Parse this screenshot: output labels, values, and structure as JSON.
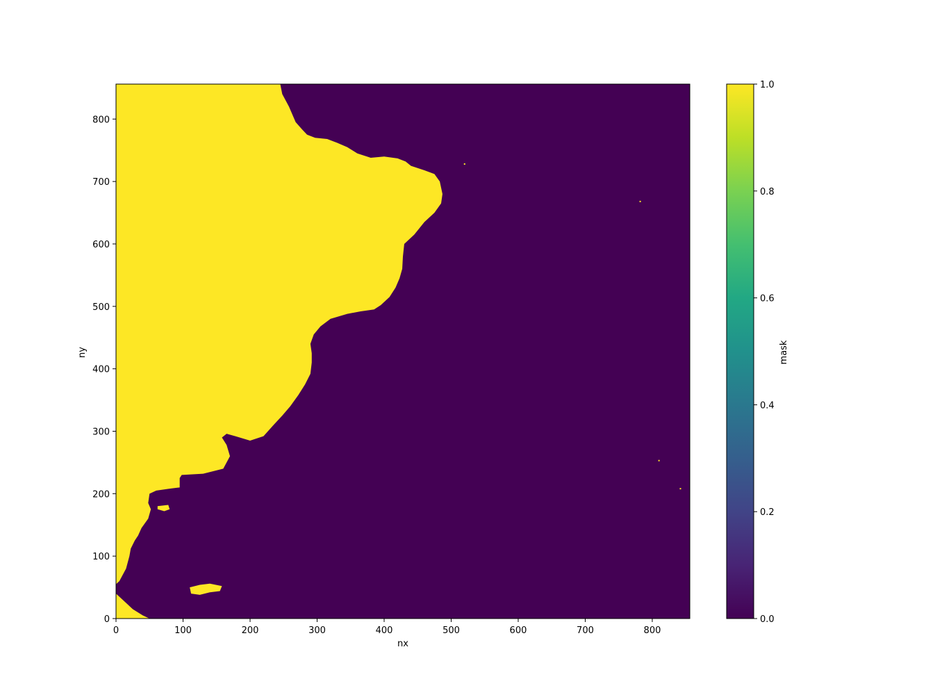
{
  "chart_data": {
    "type": "heatmap",
    "title": "",
    "xlabel": "nx",
    "ylabel": "ny",
    "xlim": [
      0,
      856
    ],
    "ylim": [
      0,
      856
    ],
    "xticks": [
      0,
      100,
      200,
      300,
      400,
      500,
      600,
      700,
      800
    ],
    "yticks": [
      0,
      100,
      200,
      300,
      400,
      500,
      600,
      700,
      800
    ],
    "colormap": "viridis",
    "colors": {
      "low": "#440154",
      "high": "#fde725"
    },
    "colorbar": {
      "label": "mask",
      "range": [
        0.0,
        1.0
      ],
      "ticks": [
        "0.0",
        "0.2",
        "0.4",
        "0.6",
        "0.8",
        "1.0"
      ]
    },
    "land_boundary": [
      [
        0,
        856
      ],
      [
        245,
        856
      ],
      [
        248,
        840
      ],
      [
        258,
        820
      ],
      [
        268,
        795
      ],
      [
        278,
        783
      ],
      [
        285,
        775
      ],
      [
        297,
        770
      ],
      [
        315,
        768
      ],
      [
        330,
        762
      ],
      [
        345,
        755
      ],
      [
        360,
        745
      ],
      [
        380,
        738
      ],
      [
        400,
        740
      ],
      [
        420,
        737
      ],
      [
        432,
        732
      ],
      [
        440,
        725
      ],
      [
        460,
        718
      ],
      [
        475,
        712
      ],
      [
        483,
        700
      ],
      [
        487,
        680
      ],
      [
        485,
        665
      ],
      [
        475,
        650
      ],
      [
        460,
        635
      ],
      [
        445,
        615
      ],
      [
        430,
        600
      ],
      [
        428,
        580
      ],
      [
        427,
        560
      ],
      [
        423,
        545
      ],
      [
        417,
        530
      ],
      [
        408,
        515
      ],
      [
        395,
        502
      ],
      [
        385,
        495
      ],
      [
        365,
        492
      ],
      [
        345,
        488
      ],
      [
        320,
        480
      ],
      [
        305,
        468
      ],
      [
        295,
        455
      ],
      [
        290,
        440
      ],
      [
        292,
        425
      ],
      [
        292,
        410
      ],
      [
        290,
        392
      ],
      [
        282,
        375
      ],
      [
        272,
        358
      ],
      [
        260,
        340
      ],
      [
        248,
        325
      ],
      [
        235,
        310
      ],
      [
        220,
        292
      ],
      [
        200,
        285
      ],
      [
        178,
        292
      ],
      [
        165,
        296
      ],
      [
        158,
        290
      ],
      [
        165,
        278
      ],
      [
        170,
        260
      ],
      [
        160,
        240
      ],
      [
        130,
        232
      ],
      [
        98,
        230
      ],
      [
        95,
        225
      ],
      [
        95,
        210
      ],
      [
        80,
        208
      ],
      [
        60,
        205
      ],
      [
        50,
        200
      ],
      [
        48,
        185
      ],
      [
        52,
        175
      ],
      [
        48,
        160
      ],
      [
        38,
        145
      ],
      [
        33,
        133
      ],
      [
        28,
        125
      ],
      [
        22,
        112
      ],
      [
        20,
        100
      ],
      [
        15,
        80
      ],
      [
        5,
        60
      ],
      [
        0,
        55
      ]
    ],
    "land_tail": [
      [
        0,
        40
      ],
      [
        15,
        25
      ],
      [
        25,
        15
      ],
      [
        40,
        5
      ],
      [
        50,
        0
      ],
      [
        0,
        0
      ]
    ],
    "islands": [
      [
        [
          110,
          50
        ],
        [
          125,
          54
        ],
        [
          140,
          56
        ],
        [
          158,
          52
        ],
        [
          155,
          44
        ],
        [
          140,
          42
        ],
        [
          125,
          38
        ],
        [
          112,
          40
        ]
      ],
      [
        [
          62,
          180
        ],
        [
          78,
          182
        ],
        [
          80,
          175
        ],
        [
          72,
          172
        ],
        [
          62,
          175
        ]
      ]
    ],
    "specks": [
      [
        520,
        728
      ],
      [
        782,
        668
      ],
      [
        810,
        253
      ],
      [
        842,
        208
      ]
    ]
  }
}
